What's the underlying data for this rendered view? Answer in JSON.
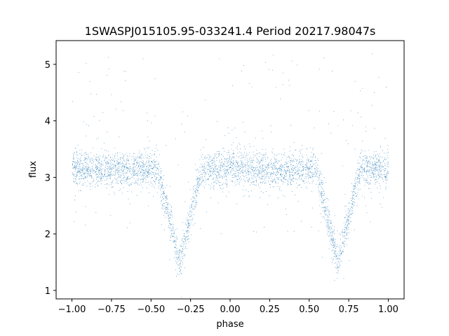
{
  "chart_data": {
    "type": "scatter",
    "title": "1SWASPJ015105.95-033241.4 Period 20217.98047s",
    "xlabel": "phase",
    "ylabel": "flux",
    "xlim": [
      -1.1,
      1.1
    ],
    "ylim": [
      0.85,
      5.42
    ],
    "x_ticks": [
      -1.0,
      -0.75,
      -0.5,
      -0.25,
      0.0,
      0.25,
      0.5,
      0.75,
      1.0
    ],
    "x_tick_labels": [
      "−1.00",
      "−0.75",
      "−0.50",
      "−0.25",
      "0.00",
      "0.25",
      "0.50",
      "0.75",
      "1.00"
    ],
    "y_ticks": [
      1,
      2,
      3,
      4,
      5
    ],
    "y_tick_labels": [
      "1",
      "2",
      "3",
      "4",
      "5"
    ],
    "grid": false,
    "marker_color": "#1f77b4",
    "phase_range": [
      -1.0,
      1.0
    ],
    "baseline_flux": 3.15,
    "baseline_scatter": 0.15,
    "eclipses": [
      {
        "center_phase": -0.32,
        "min_flux": 1.5,
        "half_width": 0.14
      },
      {
        "center_phase": 0.68,
        "min_flux": 1.5,
        "half_width": 0.14
      }
    ]
  }
}
